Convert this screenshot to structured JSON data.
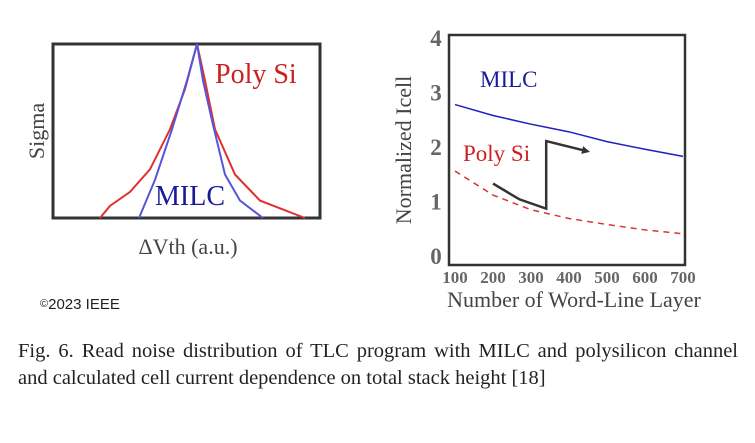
{
  "chart_data": [
    {
      "type": "line",
      "title": "",
      "xlabel": "ΔVth (a.u.)",
      "ylabel": "Sigma",
      "xlim": [
        -144,
        123
      ],
      "ylim": [
        0,
        1
      ],
      "series": [
        {
          "name": "Poly Si",
          "color": "#e03030",
          "label": "Poly Si",
          "x": [
            -97,
            -87,
            -67,
            -47,
            -27,
            -12,
            0,
            8,
            18,
            38,
            63,
            108
          ],
          "y": [
            0,
            0.07,
            0.15,
            0.28,
            0.51,
            0.74,
            1,
            0.79,
            0.51,
            0.25,
            0.1,
            0
          ]
        },
        {
          "name": "MILC",
          "color": "#5555dd",
          "label": "MILC",
          "x": [
            -58,
            -42,
            -25,
            -10,
            0,
            6,
            15,
            28,
            43,
            66
          ],
          "y": [
            0,
            0.22,
            0.51,
            0.79,
            1,
            0.79,
            0.56,
            0.25,
            0.1,
            0
          ]
        }
      ]
    },
    {
      "type": "line",
      "title": "",
      "xlabel": "Number of Word-Line Layer",
      "ylabel": "Normalized Icell",
      "xlim": [
        100,
        700
      ],
      "ylim": [
        0,
        4
      ],
      "xticks": [
        "100",
        "200",
        "300",
        "400",
        "500",
        "600",
        "700"
      ],
      "yticks": [
        "0",
        "1",
        "2",
        "3",
        "4"
      ],
      "series": [
        {
          "name": "MILC",
          "label": "MILC",
          "color": "#2020c0",
          "style": "solid",
          "x": [
            100,
            200,
            300,
            400,
            500,
            600,
            700
          ],
          "y": [
            2.76,
            2.56,
            2.4,
            2.26,
            2.08,
            1.94,
            1.81
          ]
        },
        {
          "name": "Poly Si",
          "label": "Poly Si",
          "color": "#dd3333",
          "style": "dashed",
          "x": [
            100,
            200,
            300,
            400,
            500,
            600,
            700
          ],
          "y": [
            1.54,
            1.1,
            0.83,
            0.67,
            0.56,
            0.46,
            0.39
          ]
        }
      ],
      "annotation": {
        "type": "arrow",
        "color": "#333333",
        "points": [
          [
            200,
            1.31
          ],
          [
            270,
            1.02
          ],
          [
            340,
            0.85
          ],
          [
            340,
            2.09
          ],
          [
            450,
            1.9
          ]
        ]
      }
    }
  ],
  "copyright": "2023 IEEE",
  "copyright_symbol": "©",
  "caption": "Fig. 6. Read noise distribution of TLC program with MILC and polysilicon channel and calculated cell current dependence on total stack height [18]"
}
